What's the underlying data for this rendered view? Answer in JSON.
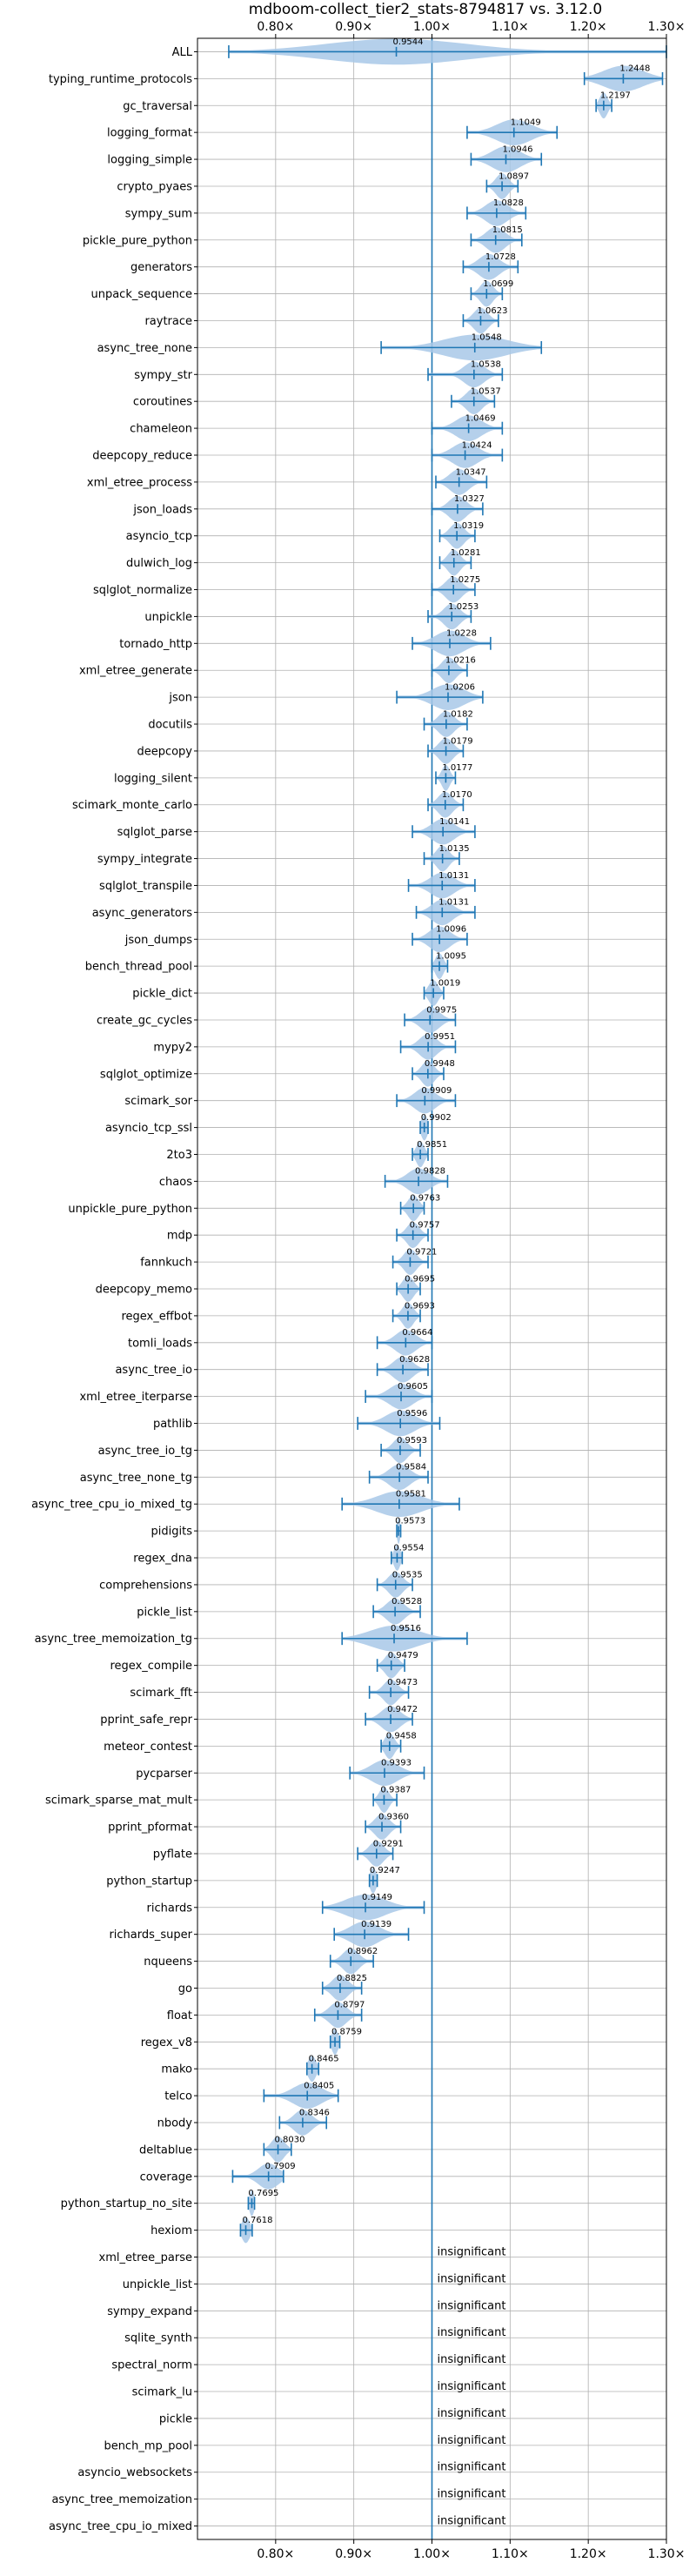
{
  "chart_data": {
    "type": "violin",
    "title": "mdboom-collect_tier2_stats-8794817 vs. 3.12.0",
    "xlim": [
      0.7,
      1.3
    ],
    "xticks": [
      {
        "value": 0.8,
        "label": "0.80×"
      },
      {
        "value": 0.9,
        "label": "0.90×"
      },
      {
        "value": 1.0,
        "label": "1.00×"
      },
      {
        "value": 1.1,
        "label": "1.10×"
      },
      {
        "value": 1.2,
        "label": "1.20×"
      },
      {
        "value": 1.3,
        "label": "1.30×"
      }
    ],
    "reference_line": 1.0,
    "grid": true,
    "colors": {
      "body": "#a8c8e8",
      "line": "#1f77b4",
      "grid": "#b0b0b0"
    },
    "insignificant_label": "insignificant",
    "benchmarks": [
      {
        "name": "ALL",
        "value": 0.9544,
        "min": 0.74,
        "max": 1.3,
        "spread": 0.09
      },
      {
        "name": "typing_runtime_protocols",
        "value": 1.2448,
        "min": 1.195,
        "max": 1.295,
        "spread": 0.025
      },
      {
        "name": "gc_traversal",
        "value": 1.2197,
        "min": 1.21,
        "max": 1.23,
        "spread": 0.005
      },
      {
        "name": "logging_format",
        "value": 1.1049,
        "min": 1.045,
        "max": 1.16,
        "spread": 0.022
      },
      {
        "name": "logging_simple",
        "value": 1.0946,
        "min": 1.05,
        "max": 1.14,
        "spread": 0.018
      },
      {
        "name": "crypto_pyaes",
        "value": 1.0897,
        "min": 1.07,
        "max": 1.11,
        "spread": 0.008
      },
      {
        "name": "sympy_sum",
        "value": 1.0828,
        "min": 1.045,
        "max": 1.12,
        "spread": 0.014
      },
      {
        "name": "pickle_pure_python",
        "value": 1.0815,
        "min": 1.05,
        "max": 1.115,
        "spread": 0.012
      },
      {
        "name": "generators",
        "value": 1.0728,
        "min": 1.04,
        "max": 1.11,
        "spread": 0.013
      },
      {
        "name": "unpack_sequence",
        "value": 1.0699,
        "min": 1.05,
        "max": 1.09,
        "spread": 0.008
      },
      {
        "name": "raytrace",
        "value": 1.0623,
        "min": 1.04,
        "max": 1.085,
        "spread": 0.009
      },
      {
        "name": "async_tree_none",
        "value": 1.0548,
        "min": 0.935,
        "max": 1.14,
        "spread": 0.04
      },
      {
        "name": "sympy_str",
        "value": 1.0538,
        "min": 0.995,
        "max": 1.09,
        "spread": 0.013
      },
      {
        "name": "coroutines",
        "value": 1.0537,
        "min": 1.025,
        "max": 1.08,
        "spread": 0.01
      },
      {
        "name": "chameleon",
        "value": 1.0469,
        "min": 1.0,
        "max": 1.09,
        "spread": 0.016
      },
      {
        "name": "deepcopy_reduce",
        "value": 1.0424,
        "min": 1.0,
        "max": 1.09,
        "spread": 0.016
      },
      {
        "name": "xml_etree_process",
        "value": 1.0347,
        "min": 1.005,
        "max": 1.07,
        "spread": 0.012
      },
      {
        "name": "json_loads",
        "value": 1.0327,
        "min": 1.0,
        "max": 1.065,
        "spread": 0.011
      },
      {
        "name": "asyncio_tcp",
        "value": 1.0319,
        "min": 1.01,
        "max": 1.055,
        "spread": 0.009
      },
      {
        "name": "dulwich_log",
        "value": 1.0281,
        "min": 1.01,
        "max": 1.05,
        "spread": 0.008
      },
      {
        "name": "sqlglot_normalize",
        "value": 1.0275,
        "min": 1.0,
        "max": 1.055,
        "spread": 0.01
      },
      {
        "name": "unpickle",
        "value": 1.0253,
        "min": 0.995,
        "max": 1.05,
        "spread": 0.01
      },
      {
        "name": "tornado_http",
        "value": 1.0228,
        "min": 0.975,
        "max": 1.075,
        "spread": 0.018
      },
      {
        "name": "xml_etree_generate",
        "value": 1.0216,
        "min": 1.0,
        "max": 1.045,
        "spread": 0.009
      },
      {
        "name": "json",
        "value": 1.0206,
        "min": 0.955,
        "max": 1.065,
        "spread": 0.02
      },
      {
        "name": "docutils",
        "value": 1.0182,
        "min": 0.99,
        "max": 1.045,
        "spread": 0.01
      },
      {
        "name": "deepcopy",
        "value": 1.0179,
        "min": 0.995,
        "max": 1.04,
        "spread": 0.009
      },
      {
        "name": "logging_silent",
        "value": 1.0177,
        "min": 1.005,
        "max": 1.03,
        "spread": 0.005
      },
      {
        "name": "scimark_monte_carlo",
        "value": 1.017,
        "min": 0.995,
        "max": 1.04,
        "spread": 0.009
      },
      {
        "name": "sqlglot_parse",
        "value": 1.0141,
        "min": 0.975,
        "max": 1.055,
        "spread": 0.014
      },
      {
        "name": "sympy_integrate",
        "value": 1.0135,
        "min": 0.99,
        "max": 1.035,
        "spread": 0.008
      },
      {
        "name": "sqlglot_transpile",
        "value": 1.0131,
        "min": 0.97,
        "max": 1.055,
        "spread": 0.015
      },
      {
        "name": "async_generators",
        "value": 1.0131,
        "min": 0.98,
        "max": 1.055,
        "spread": 0.013
      },
      {
        "name": "json_dumps",
        "value": 1.0096,
        "min": 0.975,
        "max": 1.045,
        "spread": 0.013
      },
      {
        "name": "bench_thread_pool",
        "value": 1.0095,
        "min": 1.0,
        "max": 1.02,
        "spread": 0.005
      },
      {
        "name": "pickle_dict",
        "value": 1.0019,
        "min": 0.99,
        "max": 1.015,
        "spread": 0.006
      },
      {
        "name": "create_gc_cycles",
        "value": 0.9975,
        "min": 0.965,
        "max": 1.03,
        "spread": 0.012
      },
      {
        "name": "mypy2",
        "value": 0.9951,
        "min": 0.96,
        "max": 1.03,
        "spread": 0.011
      },
      {
        "name": "sqlglot_optimize",
        "value": 0.9948,
        "min": 0.975,
        "max": 1.015,
        "spread": 0.008
      },
      {
        "name": "scimark_sor",
        "value": 0.9909,
        "min": 0.955,
        "max": 1.03,
        "spread": 0.013
      },
      {
        "name": "asyncio_tcp_ssl",
        "value": 0.9902,
        "min": 0.985,
        "max": 0.995,
        "spread": 0.004
      },
      {
        "name": "2to3",
        "value": 0.9851,
        "min": 0.975,
        "max": 0.995,
        "spread": 0.005
      },
      {
        "name": "chaos",
        "value": 0.9828,
        "min": 0.94,
        "max": 1.02,
        "spread": 0.014
      },
      {
        "name": "unpickle_pure_python",
        "value": 0.9763,
        "min": 0.96,
        "max": 0.99,
        "spread": 0.007
      },
      {
        "name": "mdp",
        "value": 0.9757,
        "min": 0.955,
        "max": 0.995,
        "spread": 0.008
      },
      {
        "name": "fannkuch",
        "value": 0.9721,
        "min": 0.95,
        "max": 0.995,
        "spread": 0.008
      },
      {
        "name": "deepcopy_memo",
        "value": 0.9695,
        "min": 0.955,
        "max": 0.985,
        "spread": 0.007
      },
      {
        "name": "regex_effbot",
        "value": 0.9693,
        "min": 0.95,
        "max": 0.985,
        "spread": 0.007
      },
      {
        "name": "tomli_loads",
        "value": 0.9664,
        "min": 0.93,
        "max": 1.0,
        "spread": 0.013
      },
      {
        "name": "async_tree_io",
        "value": 0.9628,
        "min": 0.93,
        "max": 0.995,
        "spread": 0.012
      },
      {
        "name": "xml_etree_iterparse",
        "value": 0.9605,
        "min": 0.915,
        "max": 1.0,
        "spread": 0.015
      },
      {
        "name": "pathlib",
        "value": 0.9596,
        "min": 0.905,
        "max": 1.01,
        "spread": 0.018
      },
      {
        "name": "async_tree_io_tg",
        "value": 0.9593,
        "min": 0.935,
        "max": 0.985,
        "spread": 0.009
      },
      {
        "name": "async_tree_none_tg",
        "value": 0.9584,
        "min": 0.92,
        "max": 0.995,
        "spread": 0.013
      },
      {
        "name": "async_tree_cpu_io_mixed_tg",
        "value": 0.9581,
        "min": 0.885,
        "max": 1.035,
        "spread": 0.028
      },
      {
        "name": "pidigits",
        "value": 0.9573,
        "min": 0.955,
        "max": 0.96,
        "spread": 0.002
      },
      {
        "name": "regex_dna",
        "value": 0.9554,
        "min": 0.948,
        "max": 0.962,
        "spread": 0.004
      },
      {
        "name": "comprehensions",
        "value": 0.9535,
        "min": 0.93,
        "max": 0.975,
        "spread": 0.009
      },
      {
        "name": "pickle_list",
        "value": 0.9528,
        "min": 0.925,
        "max": 0.985,
        "spread": 0.011
      },
      {
        "name": "async_tree_memoization_tg",
        "value": 0.9516,
        "min": 0.885,
        "max": 1.045,
        "spread": 0.03
      },
      {
        "name": "regex_compile",
        "value": 0.9479,
        "min": 0.93,
        "max": 0.965,
        "spread": 0.008
      },
      {
        "name": "scimark_fft",
        "value": 0.9473,
        "min": 0.92,
        "max": 0.97,
        "spread": 0.009
      },
      {
        "name": "pprint_safe_repr",
        "value": 0.9472,
        "min": 0.915,
        "max": 0.975,
        "spread": 0.012
      },
      {
        "name": "meteor_contest",
        "value": 0.9458,
        "min": 0.935,
        "max": 0.96,
        "spread": 0.006
      },
      {
        "name": "pycparser",
        "value": 0.9393,
        "min": 0.895,
        "max": 0.99,
        "spread": 0.017
      },
      {
        "name": "scimark_sparse_mat_mult",
        "value": 0.9387,
        "min": 0.925,
        "max": 0.955,
        "spread": 0.006
      },
      {
        "name": "pprint_pformat",
        "value": 0.936,
        "min": 0.915,
        "max": 0.96,
        "spread": 0.009
      },
      {
        "name": "pyflate",
        "value": 0.9291,
        "min": 0.905,
        "max": 0.95,
        "spread": 0.009
      },
      {
        "name": "python_startup",
        "value": 0.9247,
        "min": 0.92,
        "max": 0.93,
        "spread": 0.004
      },
      {
        "name": "richards",
        "value": 0.9149,
        "min": 0.86,
        "max": 0.99,
        "spread": 0.025
      },
      {
        "name": "richards_super",
        "value": 0.9139,
        "min": 0.875,
        "max": 0.97,
        "spread": 0.018
      },
      {
        "name": "nqueens",
        "value": 0.8962,
        "min": 0.87,
        "max": 0.925,
        "spread": 0.01
      },
      {
        "name": "go",
        "value": 0.8825,
        "min": 0.86,
        "max": 0.91,
        "spread": 0.01
      },
      {
        "name": "float",
        "value": 0.8797,
        "min": 0.85,
        "max": 0.91,
        "spread": 0.011
      },
      {
        "name": "regex_v8",
        "value": 0.8759,
        "min": 0.87,
        "max": 0.882,
        "spread": 0.004
      },
      {
        "name": "mako",
        "value": 0.8465,
        "min": 0.84,
        "max": 0.855,
        "spread": 0.005
      },
      {
        "name": "telco",
        "value": 0.8405,
        "min": 0.785,
        "max": 0.88,
        "spread": 0.018
      },
      {
        "name": "nbody",
        "value": 0.8346,
        "min": 0.805,
        "max": 0.865,
        "spread": 0.011
      },
      {
        "name": "deltablue",
        "value": 0.803,
        "min": 0.785,
        "max": 0.82,
        "spread": 0.008
      },
      {
        "name": "coverage",
        "value": 0.7909,
        "min": 0.745,
        "max": 0.81,
        "spread": 0.013
      },
      {
        "name": "python_startup_no_site",
        "value": 0.7695,
        "min": 0.765,
        "max": 0.773,
        "spread": 0.003
      },
      {
        "name": "hexiom",
        "value": 0.7618,
        "min": 0.755,
        "max": 0.77,
        "spread": 0.005
      },
      {
        "name": "xml_etree_parse",
        "insignificant": true
      },
      {
        "name": "unpickle_list",
        "insignificant": true
      },
      {
        "name": "sympy_expand",
        "insignificant": true
      },
      {
        "name": "sqlite_synth",
        "insignificant": true
      },
      {
        "name": "spectral_norm",
        "insignificant": true
      },
      {
        "name": "scimark_lu",
        "insignificant": true
      },
      {
        "name": "pickle",
        "insignificant": true
      },
      {
        "name": "bench_mp_pool",
        "insignificant": true
      },
      {
        "name": "asyncio_websockets",
        "insignificant": true
      },
      {
        "name": "async_tree_memoization",
        "insignificant": true
      },
      {
        "name": "async_tree_cpu_io_mixed",
        "insignificant": true
      }
    ]
  }
}
